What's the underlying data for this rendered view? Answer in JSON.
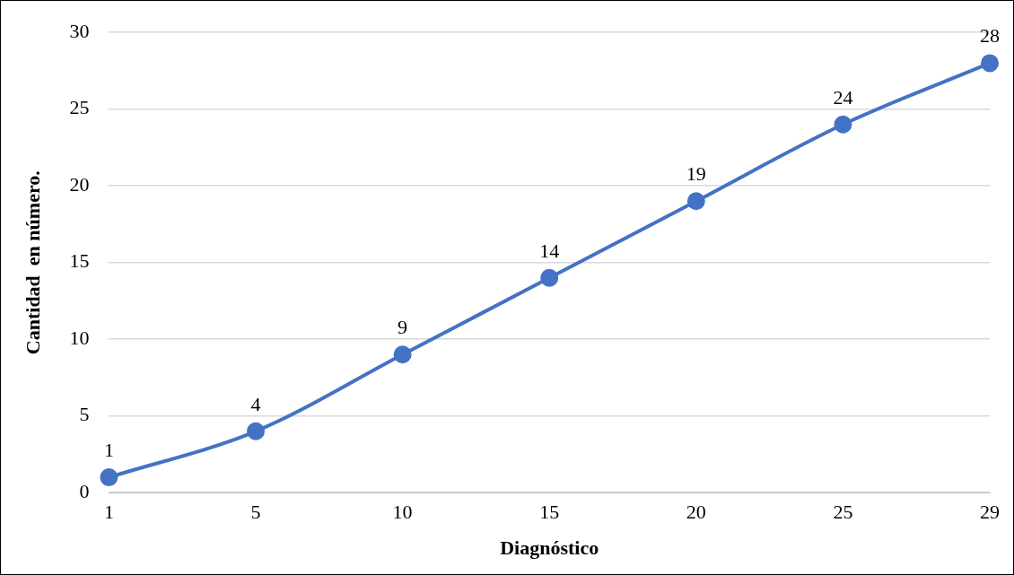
{
  "chart_data": {
    "type": "line",
    "xlabel": "Diagnóstico",
    "ylabel": "Cantidad  en número.",
    "categories": [
      "1",
      "5",
      "10",
      "15",
      "20",
      "25",
      "29"
    ],
    "series": [
      {
        "color": "#4472c4",
        "values": [
          1,
          4,
          9,
          14,
          19,
          24,
          28
        ]
      }
    ],
    "ylim": [
      0,
      30
    ],
    "yticks": [
      0,
      5,
      10,
      15,
      20,
      25,
      30
    ],
    "grid": "y",
    "legend": false,
    "marker": "circle",
    "line_style": "solid",
    "data_labels": true
  }
}
